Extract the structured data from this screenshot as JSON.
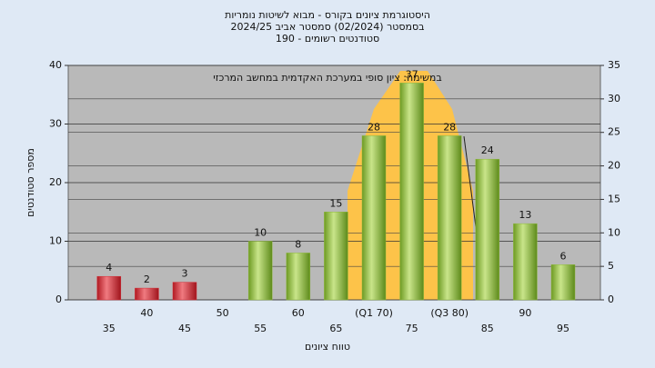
{
  "chart_data": {
    "type": "bar",
    "title": "היסטוגרמת ציונים בקורס - מבוא לשיטות נומריות",
    "subtitle": "בסמסטר  (02/2024)  סמסטר אביב 2024/25",
    "subtitle2": "סטודנטים רשומים - 190",
    "annotation": "במשימה: ציון סופי במערכת האקדמית במחשב המרכזי",
    "ylabel": "מספר סטודנטים",
    "xlabel": "טווח ציונים",
    "categories": [
      "35",
      "40",
      "45",
      "50",
      "55",
      "60",
      "65",
      "(Q1 70)",
      "75",
      "(Q3 80)",
      "85",
      "90",
      "95"
    ],
    "values": [
      4,
      2,
      3,
      null,
      10,
      8,
      15,
      28,
      37,
      28,
      24,
      13,
      6
    ],
    "colors": [
      "#d42a34",
      "#d42a34",
      "#d42a34",
      "#8db83c",
      "#8db83c",
      "#8db83c",
      "#8db83c",
      "#8db83c",
      "#8db83c",
      "#8db83c",
      "#8db83c",
      "#8db83c",
      "#8db83c"
    ],
    "ylim": [
      0,
      40
    ],
    "yticks": [
      0,
      10,
      20,
      30,
      40
    ],
    "y2lim": [
      0,
      35
    ],
    "y2ticks": [
      0,
      5,
      10,
      15,
      20,
      25,
      30,
      35
    ],
    "grid": true
  }
}
